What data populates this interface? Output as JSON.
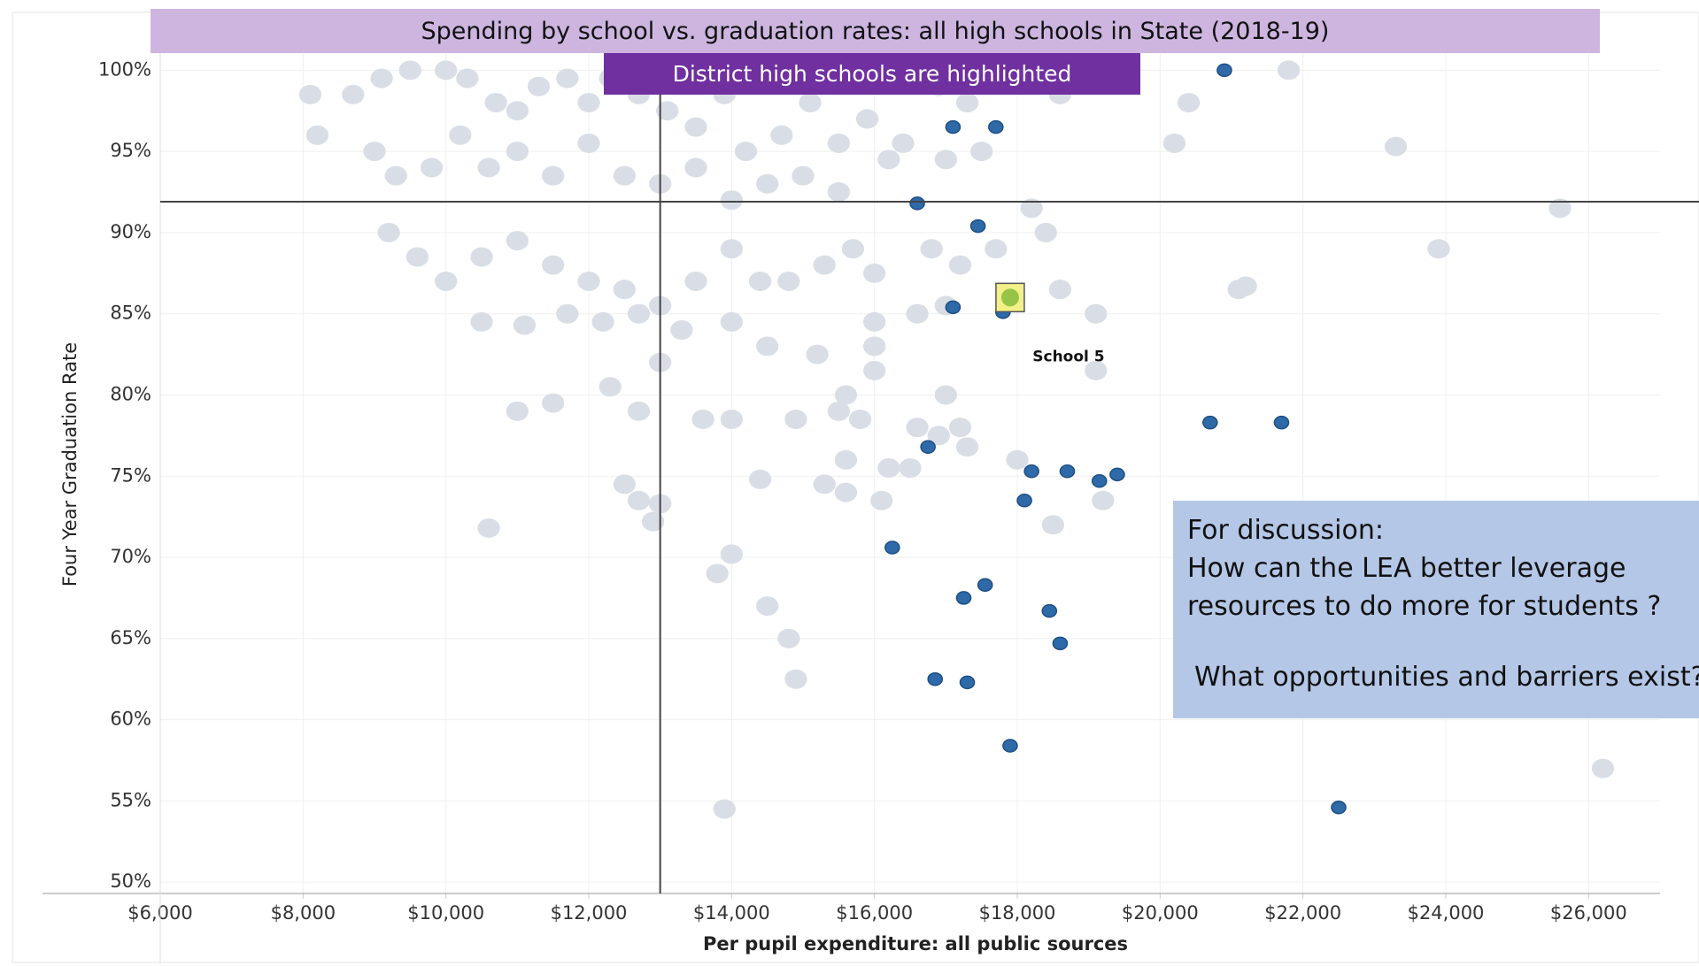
{
  "chart_data": {
    "type": "scatter",
    "title": "Spending by school vs. graduation rates: all high schools in State (2018-19)",
    "subtitle": "District high schools are highlighted",
    "xlabel": "Per pupil expenditure: all public sources",
    "ylabel": "Four Year Graduation Rate",
    "discussion": [
      "For discussion:",
      "How can the LEA better leverage",
      "resources to do more for students ?",
      "What opportunities and barriers exist?"
    ],
    "xlim": [
      6000,
      27000
    ],
    "ylim": [
      49.3,
      101
    ],
    "xticks": [
      {
        "value": 6000,
        "label": "$6,000"
      },
      {
        "value": 8000,
        "label": "$8,000"
      },
      {
        "value": 10000,
        "label": "$10,000"
      },
      {
        "value": 12000,
        "label": "$12,000"
      },
      {
        "value": 14000,
        "label": "$14,000"
      },
      {
        "value": 16000,
        "label": "$16,000"
      },
      {
        "value": 18000,
        "label": "$18,000"
      },
      {
        "value": 20000,
        "label": "$20,000"
      },
      {
        "value": 22000,
        "label": "$22,000"
      },
      {
        "value": 24000,
        "label": "$24,000"
      },
      {
        "value": 26000,
        "label": "$26,000"
      }
    ],
    "yticks": [
      {
        "value": 50,
        "label": "50%"
      },
      {
        "value": 55,
        "label": "55%"
      },
      {
        "value": 60,
        "label": "60%"
      },
      {
        "value": 65,
        "label": "65%"
      },
      {
        "value": 70,
        "label": "70%"
      },
      {
        "value": 75,
        "label": "75%"
      },
      {
        "value": 80,
        "label": "80%"
      },
      {
        "value": 85,
        "label": "85%"
      },
      {
        "value": 90,
        "label": "90%"
      },
      {
        "value": 95,
        "label": "95%"
      },
      {
        "value": 100,
        "label": "100%"
      }
    ],
    "grid": true,
    "reference_lines": {
      "x": 13000,
      "y": 91.9
    },
    "series": [
      {
        "color": "#d9dee6",
        "radius": 11,
        "x": [
          8100,
          8700,
          9100,
          9500,
          10000,
          10300,
          10700,
          11000,
          11300,
          11700,
          12000,
          12300,
          12700,
          13100,
          13500,
          13900,
          14200,
          14700,
          15100,
          15500,
          15900,
          16400,
          16900,
          17300,
          18600,
          19200,
          21800,
          20400,
          20200,
          23300,
          8200,
          9000,
          9300,
          9800,
          10200,
          10600,
          11000,
          11500,
          12000,
          12500,
          13000,
          13500,
          14000,
          14500,
          15000,
          15500,
          16200,
          17000,
          17500,
          18200,
          9200,
          9600,
          10000,
          10500,
          11000,
          11500,
          12000,
          12500,
          13000,
          13500,
          14000,
          14400,
          14800,
          15300,
          15700,
          16000,
          16800,
          17200,
          17700,
          18400,
          18600,
          19100,
          21100,
          21200,
          23900,
          25600,
          10500,
          11100,
          11700,
          12200,
          12700,
          13300,
          14000,
          14500,
          15200,
          16000,
          16000,
          16600,
          13000,
          12300,
          11500,
          11000,
          12700,
          13600,
          14000,
          14900,
          15500,
          15800,
          16600,
          17000,
          17200,
          16900,
          17300,
          15600,
          16200,
          16500,
          15300,
          15600,
          16100,
          18000,
          19200,
          18500,
          12500,
          12700,
          13000,
          12900,
          10600,
          14400,
          14000,
          13800,
          14500,
          14800,
          14900,
          13900,
          26200,
          15600,
          16000,
          19100,
          17000
        ],
        "values": [
          98.5,
          98.5,
          99.5,
          100,
          100,
          99.5,
          98,
          97.5,
          99,
          99.5,
          98,
          99.5,
          98.5,
          97.5,
          96.5,
          98.5,
          95,
          96,
          98,
          95.5,
          97,
          95.5,
          99,
          98,
          98.5,
          99.5,
          100,
          98,
          95.5,
          95.3,
          96,
          95,
          93.5,
          94,
          96,
          94,
          95,
          93.5,
          95.5,
          93.5,
          93,
          94,
          92,
          93,
          93.5,
          92.5,
          94.5,
          94.5,
          95,
          91.5,
          90,
          88.5,
          87,
          88.5,
          89.5,
          88,
          87,
          86.5,
          85.5,
          87,
          89,
          87,
          87,
          88,
          89,
          87.5,
          89,
          88,
          89,
          90,
          86.5,
          85,
          86.5,
          86.7,
          89,
          91.5,
          84.5,
          84.3,
          85,
          84.5,
          85,
          84,
          84.5,
          83,
          82.5,
          84.5,
          83,
          85,
          82,
          80.5,
          79.5,
          79,
          79,
          78.5,
          78.5,
          78.5,
          79,
          78.5,
          78,
          80,
          78,
          77.5,
          76.8,
          76,
          75.5,
          75.5,
          74.5,
          74,
          73.5,
          76,
          73.5,
          72,
          74.5,
          73.5,
          73.3,
          72.2,
          71.8,
          74.8,
          70.2,
          69,
          67,
          65,
          62.5,
          54.5,
          57,
          80,
          81.5,
          81.5,
          85.5
        ]
      },
      {
        "color": "#2e6aa8",
        "radius": 7,
        "x": [
          20900,
          17100,
          17700,
          16600,
          17450,
          17100,
          17800,
          20700,
          21700,
          16750,
          18200,
          18700,
          19150,
          19400,
          18100,
          16250,
          17550,
          17250,
          18450,
          18600,
          16850,
          17300,
          17900,
          22500
        ],
        "values": [
          100,
          96.5,
          96.5,
          91.8,
          90.4,
          85.4,
          85.1,
          78.3,
          78.3,
          76.8,
          75.3,
          75.3,
          74.7,
          75.1,
          73.5,
          70.6,
          68.3,
          67.5,
          66.7,
          64.7,
          62.5,
          62.3,
          58.4,
          54.6
        ]
      },
      {
        "color": "#8bbf3f",
        "radius": 10,
        "label": "School 5",
        "x": [
          17900
        ],
        "values": [
          86
        ]
      }
    ]
  }
}
